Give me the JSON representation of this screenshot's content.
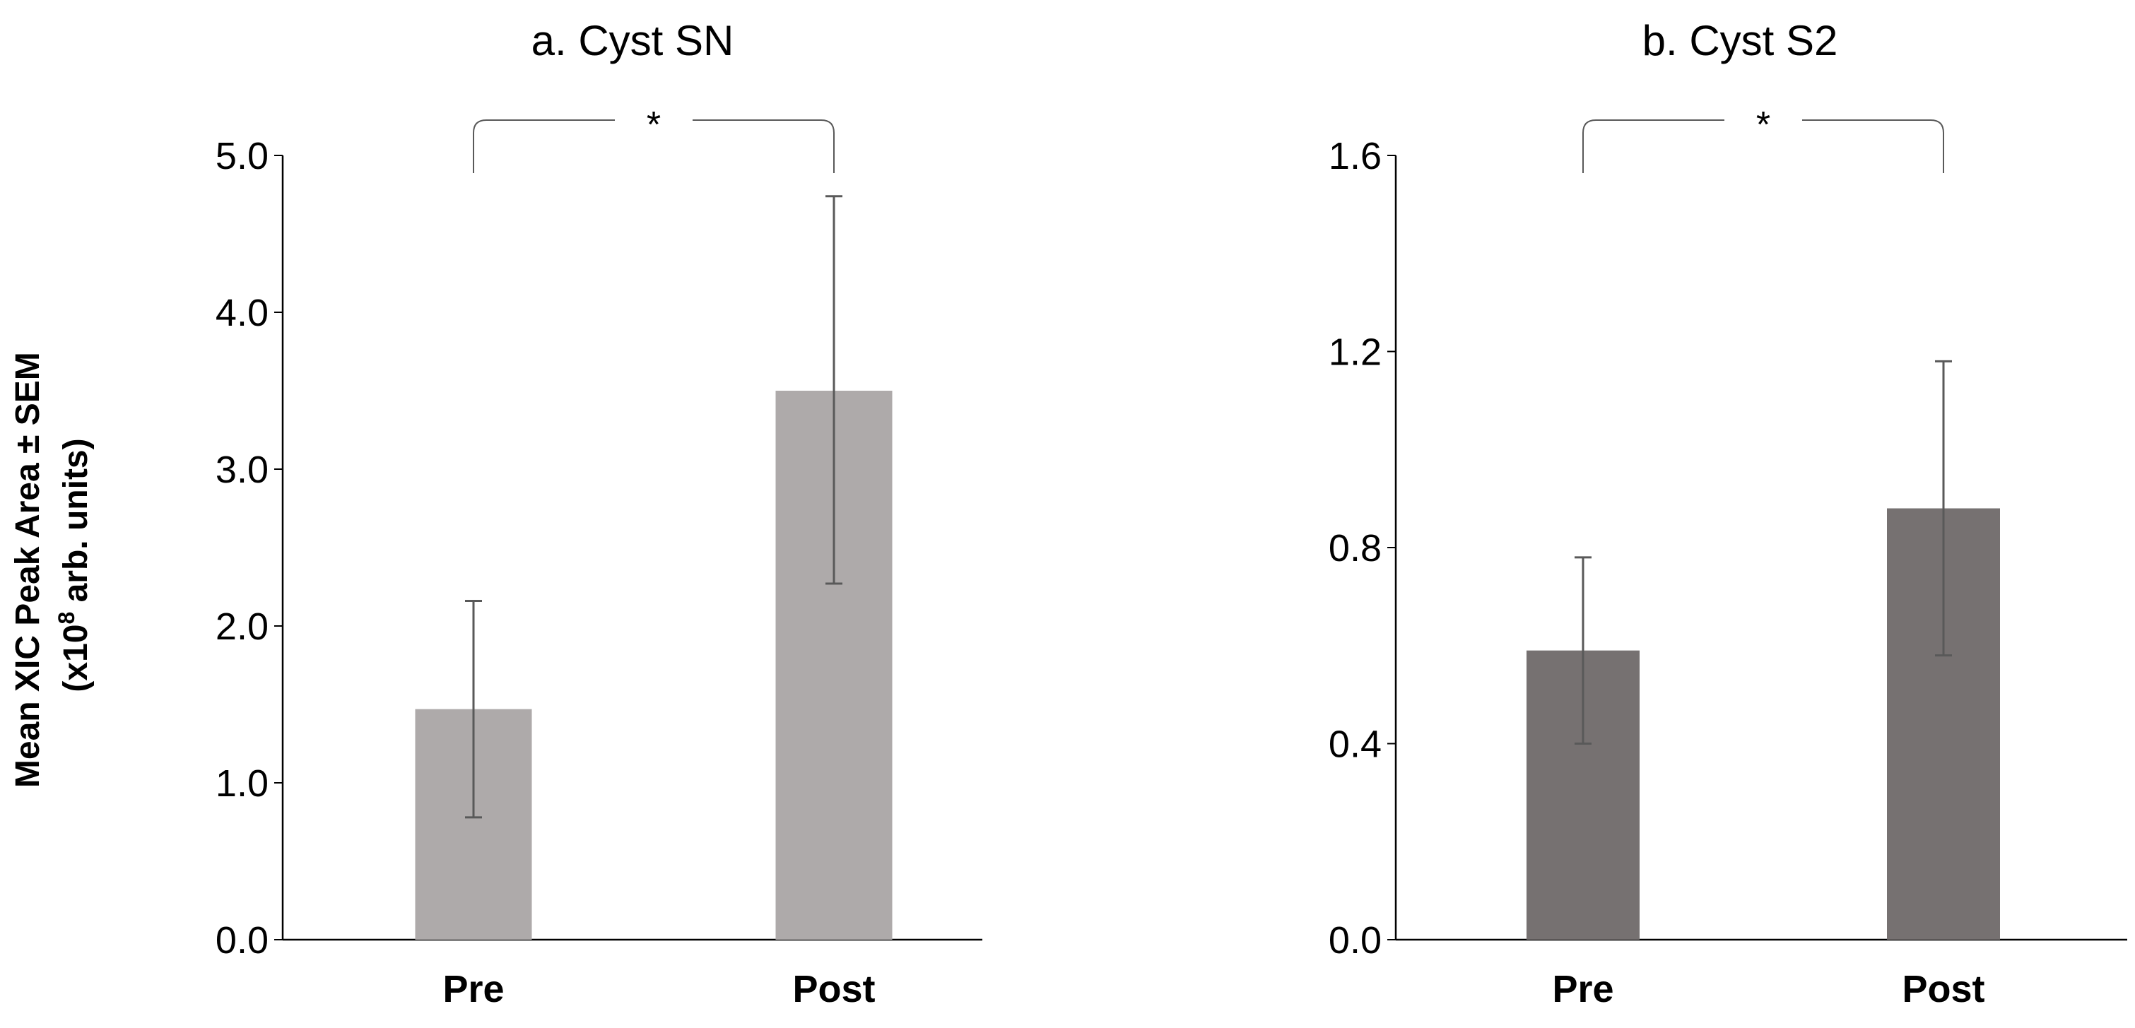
{
  "figure": {
    "ylabel_line1": "Mean XIC Peak Area ± SEM",
    "ylabel_prefix": "(x10",
    "ylabel_exp": "8",
    "ylabel_suffix": " arb. units)"
  },
  "chart_data": [
    {
      "type": "bar",
      "title": "a. Cyst SN",
      "categories": [
        "Pre",
        "Post"
      ],
      "values": [
        1.47,
        3.5
      ],
      "error_low": [
        0.78,
        2.27
      ],
      "error_high": [
        2.16,
        4.74
      ],
      "ylim": [
        0,
        5
      ],
      "yticks": [
        0,
        1,
        2,
        3,
        4,
        5
      ],
      "ytick_labels": [
        "0.0",
        "1.0",
        "2.0",
        "3.0",
        "4.0",
        "5.0"
      ],
      "xlabel": "",
      "ylabel": "Mean XIC Peak Area ± SEM (x10^8 arb. units)",
      "bar_color": "#aeaaaa",
      "significance": "*",
      "grid": false
    },
    {
      "type": "bar",
      "title": "b. Cyst S2",
      "categories": [
        "Pre",
        "Post"
      ],
      "values": [
        0.59,
        0.88
      ],
      "error_low": [
        0.4,
        0.58
      ],
      "error_high": [
        0.78,
        1.18
      ],
      "ylim": [
        0,
        1.6
      ],
      "yticks": [
        0,
        0.4,
        0.8,
        1.2,
        1.6
      ],
      "ytick_labels": [
        "0.0",
        "0.4",
        "0.8",
        "1.2",
        "1.6"
      ],
      "xlabel": "",
      "ylabel": "",
      "bar_color": "#767171",
      "significance": "*",
      "grid": false
    }
  ]
}
